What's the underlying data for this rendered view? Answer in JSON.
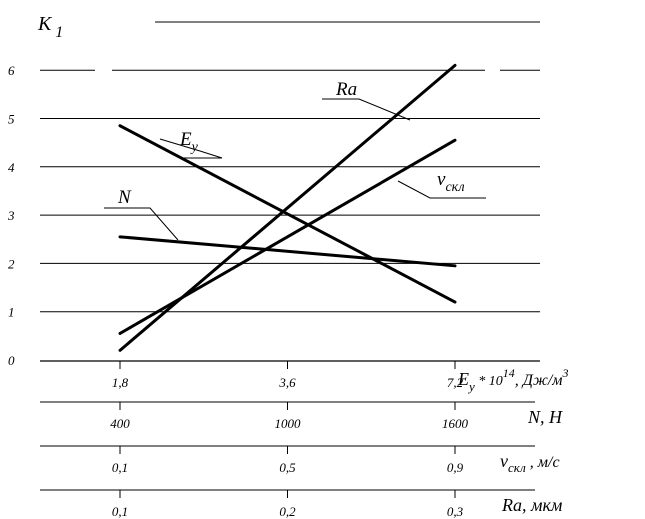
{
  "chart_data": {
    "type": "line",
    "y_axis": {
      "label_main": "К",
      "label_sub": "1",
      "range": [
        0,
        6
      ],
      "ticks": [
        "0",
        "1",
        "2",
        "3",
        "4",
        "5",
        "6"
      ],
      "grid": true
    },
    "x_axes": [
      {
        "key": "Ey",
        "ticks": [
          "1,8",
          "3,6",
          "7,2"
        ],
        "label_main": "E",
        "label_sub": "y",
        "label_rest": " * 10",
        "label_sup": "14",
        "label_tail": ", Дж/м",
        "label_sup2": "3"
      },
      {
        "key": "N",
        "ticks": [
          "400",
          "1000",
          "1600"
        ],
        "label": "N, Н"
      },
      {
        "key": "v",
        "ticks": [
          "0,1",
          "0,5",
          "0,9"
        ],
        "label_main": "v",
        "label_sub": "скл",
        "label_tail": " , м/с"
      },
      {
        "key": "Ra",
        "ticks": [
          "0,1",
          "0,2",
          "0,3"
        ],
        "label": "Ra, мкм"
      }
    ],
    "tick_positions": [
      0,
      1,
      2
    ],
    "series": [
      {
        "name": "Ra",
        "label_main": "Ra",
        "label_sub": "",
        "x": [
          0,
          2
        ],
        "y": [
          0.2,
          6.1
        ]
      },
      {
        "name": "Ey",
        "label_main": "E",
        "label_sub": "y",
        "x": [
          0,
          2
        ],
        "y": [
          4.85,
          1.2
        ]
      },
      {
        "name": "vскл",
        "label_main": "v",
        "label_sub": "скл",
        "x": [
          0,
          2
        ],
        "y": [
          0.55,
          4.55
        ]
      },
      {
        "name": "N",
        "label_main": "N",
        "label_sub": "",
        "x": [
          0,
          2
        ],
        "y": [
          2.55,
          1.95
        ]
      }
    ]
  }
}
